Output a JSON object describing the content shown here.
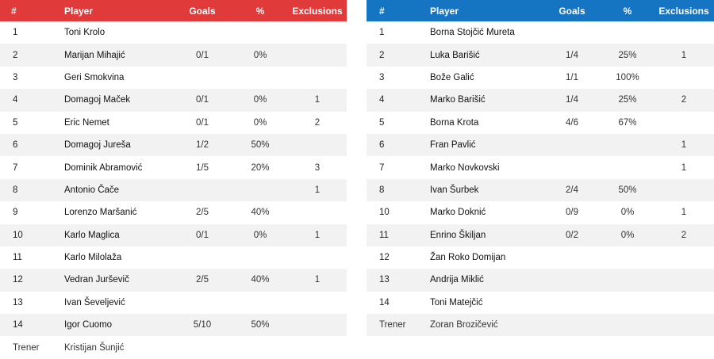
{
  "headers": {
    "num": "#",
    "player": "Player",
    "goals": "Goals",
    "pct": "%",
    "exclusions": "Exclusions"
  },
  "left_team": {
    "accent": "#e13a3b",
    "players": [
      {
        "num": "1",
        "name": "Toni Krolo",
        "goals": "",
        "pct": "",
        "excl": ""
      },
      {
        "num": "2",
        "name": "Marijan Mihajić",
        "goals": "0/1",
        "pct": "0%",
        "excl": ""
      },
      {
        "num": "3",
        "name": "Geri Smokvina",
        "goals": "",
        "pct": "",
        "excl": ""
      },
      {
        "num": "4",
        "name": "Domagoj Maček",
        "goals": "0/1",
        "pct": "0%",
        "excl": "1"
      },
      {
        "num": "5",
        "name": "Eric Nemet",
        "goals": "0/1",
        "pct": "0%",
        "excl": "2"
      },
      {
        "num": "6",
        "name": "Domagoj Jureša",
        "goals": "1/2",
        "pct": "50%",
        "excl": ""
      },
      {
        "num": "7",
        "name": "Dominik Abramović",
        "goals": "1/5",
        "pct": "20%",
        "excl": "3"
      },
      {
        "num": "8",
        "name": "Antonio Čače",
        "goals": "",
        "pct": "",
        "excl": "1"
      },
      {
        "num": "9",
        "name": "Lorenzo Maršanić",
        "goals": "2/5",
        "pct": "40%",
        "excl": ""
      },
      {
        "num": "10",
        "name": "Karlo Maglica",
        "goals": "0/1",
        "pct": "0%",
        "excl": "1"
      },
      {
        "num": "11",
        "name": "Karlo Milolaža",
        "goals": "",
        "pct": "",
        "excl": ""
      },
      {
        "num": "12",
        "name": "Vedran Jurševič",
        "goals": "2/5",
        "pct": "40%",
        "excl": "1"
      },
      {
        "num": "13",
        "name": "Ivan Ševeljević",
        "goals": "",
        "pct": "",
        "excl": ""
      },
      {
        "num": "14",
        "name": "Igor Cuomo",
        "goals": "5/10",
        "pct": "50%",
        "excl": ""
      }
    ],
    "coach_label": "Trener",
    "coach": "Kristijan Šunjić"
  },
  "right_team": {
    "accent": "#1575c2",
    "players": [
      {
        "num": "1",
        "name": "Borna Stojčić Mureta",
        "goals": "",
        "pct": "",
        "excl": ""
      },
      {
        "num": "2",
        "name": "Luka Barišić",
        "goals": "1/4",
        "pct": "25%",
        "excl": "1"
      },
      {
        "num": "3",
        "name": "Bože Galić",
        "goals": "1/1",
        "pct": "100%",
        "excl": ""
      },
      {
        "num": "4",
        "name": "Marko Barišić",
        "goals": "1/4",
        "pct": "25%",
        "excl": "2"
      },
      {
        "num": "5",
        "name": "Borna Krota",
        "goals": "4/6",
        "pct": "67%",
        "excl": ""
      },
      {
        "num": "6",
        "name": "Fran Pavlić",
        "goals": "",
        "pct": "",
        "excl": "1"
      },
      {
        "num": "7",
        "name": "Marko Novkovski",
        "goals": "",
        "pct": "",
        "excl": "1"
      },
      {
        "num": "8",
        "name": "Ivan Šurbek",
        "goals": "2/4",
        "pct": "50%",
        "excl": ""
      },
      {
        "num": "10",
        "name": "Marko Doknić",
        "goals": "0/9",
        "pct": "0%",
        "excl": "1"
      },
      {
        "num": "11",
        "name": "Enrino Škiljan",
        "goals": "0/2",
        "pct": "0%",
        "excl": "2"
      },
      {
        "num": "12",
        "name": "Žan Roko Domijan",
        "goals": "",
        "pct": "",
        "excl": ""
      },
      {
        "num": "13",
        "name": "Andrija Miklić",
        "goals": "",
        "pct": "",
        "excl": ""
      },
      {
        "num": "14",
        "name": "Toni Matejčić",
        "goals": "",
        "pct": "",
        "excl": ""
      }
    ],
    "coach_label": "Trener",
    "coach": "Zoran Brozičević"
  }
}
